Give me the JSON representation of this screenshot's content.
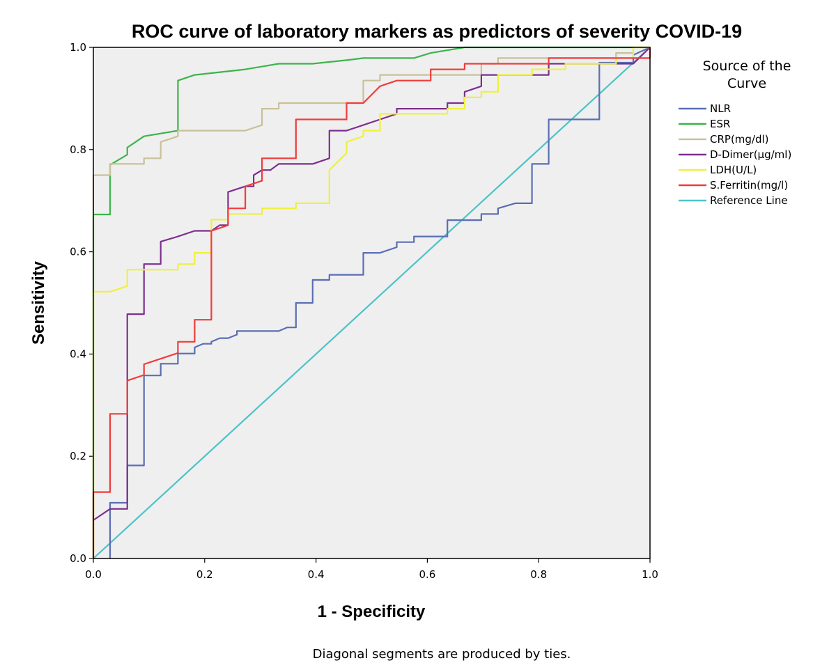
{
  "chart_data": {
    "type": "line",
    "title": "ROC curve of laboratory markers as predictors of severity COVID-19",
    "xlabel": "1 - Specificity",
    "ylabel": "Sensitivity",
    "footnote": "Diagonal segments are produced by ties.",
    "xlim": [
      0,
      1
    ],
    "ylim": [
      0,
      1
    ],
    "x_ticks": [
      "0.0",
      "0.2",
      "0.4",
      "0.6",
      "0.8",
      "1.0"
    ],
    "y_ticks": [
      "0.0",
      "0.2",
      "0.4",
      "0.6",
      "0.8",
      "1.0"
    ],
    "grid": false,
    "plot_background": "#efefef",
    "legend": {
      "title_lines": [
        "Source of the",
        "Curve"
      ],
      "position": "right"
    },
    "series": [
      {
        "name": "NLR",
        "color": "#5a6eb4",
        "points": [
          [
            0.03,
            0
          ],
          [
            0.03,
            0.097
          ],
          [
            0.03,
            0.109
          ],
          [
            0.061,
            0.109
          ],
          [
            0.061,
            0.182
          ],
          [
            0.091,
            0.182
          ],
          [
            0.091,
            0.358
          ],
          [
            0.121,
            0.358
          ],
          [
            0.121,
            0.381
          ],
          [
            0.152,
            0.381
          ],
          [
            0.152,
            0.401
          ],
          [
            0.182,
            0.401
          ],
          [
            0.182,
            0.413
          ],
          [
            0.197,
            0.42
          ],
          [
            0.212,
            0.42
          ],
          [
            0.212,
            0.424
          ],
          [
            0.227,
            0.431
          ],
          [
            0.242,
            0.431
          ],
          [
            0.258,
            0.438
          ],
          [
            0.258,
            0.445
          ],
          [
            0.333,
            0.445
          ],
          [
            0.348,
            0.452
          ],
          [
            0.364,
            0.452
          ],
          [
            0.364,
            0.5
          ],
          [
            0.394,
            0.5
          ],
          [
            0.394,
            0.545
          ],
          [
            0.424,
            0.545
          ],
          [
            0.424,
            0.555
          ],
          [
            0.485,
            0.555
          ],
          [
            0.485,
            0.598
          ],
          [
            0.515,
            0.598
          ],
          [
            0.545,
            0.609
          ],
          [
            0.545,
            0.619
          ],
          [
            0.576,
            0.619
          ],
          [
            0.576,
            0.63
          ],
          [
            0.636,
            0.63
          ],
          [
            0.636,
            0.662
          ],
          [
            0.697,
            0.662
          ],
          [
            0.697,
            0.674
          ],
          [
            0.727,
            0.674
          ],
          [
            0.727,
            0.685
          ],
          [
            0.758,
            0.695
          ],
          [
            0.788,
            0.695
          ],
          [
            0.788,
            0.772
          ],
          [
            0.818,
            0.772
          ],
          [
            0.818,
            0.859
          ],
          [
            0.909,
            0.859
          ],
          [
            0.909,
            0.97
          ],
          [
            0.97,
            0.97
          ],
          [
            0.97,
            0.985
          ],
          [
            1,
            1
          ]
        ]
      },
      {
        "name": "ESR",
        "color": "#3cb44b",
        "points": [
          [
            0,
            0
          ],
          [
            0,
            0.673
          ],
          [
            0.03,
            0.673
          ],
          [
            0.03,
            0.77
          ],
          [
            0.061,
            0.79
          ],
          [
            0.061,
            0.804
          ],
          [
            0.076,
            0.815
          ],
          [
            0.091,
            0.826
          ],
          [
            0.152,
            0.837
          ],
          [
            0.152,
            0.935
          ],
          [
            0.182,
            0.946
          ],
          [
            0.273,
            0.957
          ],
          [
            0.333,
            0.968
          ],
          [
            0.394,
            0.968
          ],
          [
            0.455,
            0.975
          ],
          [
            0.485,
            0.979
          ],
          [
            0.576,
            0.979
          ],
          [
            0.606,
            0.989
          ],
          [
            0.667,
            1
          ],
          [
            1,
            1
          ]
        ]
      },
      {
        "name": "CRP(mg/dl)",
        "color": "#c9c19a",
        "points": [
          [
            0,
            0
          ],
          [
            0,
            0.75
          ],
          [
            0.03,
            0.75
          ],
          [
            0.03,
            0.772
          ],
          [
            0.091,
            0.772
          ],
          [
            0.091,
            0.783
          ],
          [
            0.121,
            0.783
          ],
          [
            0.121,
            0.815
          ],
          [
            0.152,
            0.826
          ],
          [
            0.152,
            0.837
          ],
          [
            0.273,
            0.837
          ],
          [
            0.303,
            0.848
          ],
          [
            0.303,
            0.88
          ],
          [
            0.333,
            0.88
          ],
          [
            0.333,
            0.891
          ],
          [
            0.485,
            0.891
          ],
          [
            0.485,
            0.935
          ],
          [
            0.515,
            0.935
          ],
          [
            0.515,
            0.946
          ],
          [
            0.697,
            0.946
          ],
          [
            0.697,
            0.968
          ],
          [
            0.727,
            0.968
          ],
          [
            0.727,
            0.979
          ],
          [
            0.939,
            0.979
          ],
          [
            0.939,
            0.989
          ],
          [
            0.97,
            0.989
          ],
          [
            0.97,
            1
          ],
          [
            1,
            1
          ]
        ]
      },
      {
        "name": "D-Dimer(µg/ml)",
        "color": "#7d2f8e",
        "points": [
          [
            0,
            0.075
          ],
          [
            0.03,
            0.097
          ],
          [
            0.061,
            0.097
          ],
          [
            0.061,
            0.478
          ],
          [
            0.091,
            0.478
          ],
          [
            0.091,
            0.576
          ],
          [
            0.121,
            0.576
          ],
          [
            0.121,
            0.62
          ],
          [
            0.152,
            0.63
          ],
          [
            0.182,
            0.641
          ],
          [
            0.212,
            0.641
          ],
          [
            0.227,
            0.652
          ],
          [
            0.242,
            0.652
          ],
          [
            0.242,
            0.717
          ],
          [
            0.273,
            0.728
          ],
          [
            0.288,
            0.728
          ],
          [
            0.288,
            0.75
          ],
          [
            0.303,
            0.76
          ],
          [
            0.318,
            0.76
          ],
          [
            0.333,
            0.772
          ],
          [
            0.394,
            0.772
          ],
          [
            0.424,
            0.783
          ],
          [
            0.424,
            0.837
          ],
          [
            0.455,
            0.837
          ],
          [
            0.485,
            0.848
          ],
          [
            0.515,
            0.859
          ],
          [
            0.545,
            0.87
          ],
          [
            0.545,
            0.88
          ],
          [
            0.636,
            0.88
          ],
          [
            0.636,
            0.891
          ],
          [
            0.667,
            0.891
          ],
          [
            0.667,
            0.913
          ],
          [
            0.697,
            0.924
          ],
          [
            0.697,
            0.946
          ],
          [
            0.818,
            0.946
          ],
          [
            0.818,
            0.968
          ],
          [
            0.97,
            0.968
          ],
          [
            1,
            1
          ]
        ]
      },
      {
        "name": "LDH(U/L)",
        "color": "#f0f03c",
        "points": [
          [
            0,
            0
          ],
          [
            0,
            0.522
          ],
          [
            0.03,
            0.522
          ],
          [
            0.061,
            0.533
          ],
          [
            0.061,
            0.565
          ],
          [
            0.152,
            0.565
          ],
          [
            0.152,
            0.576
          ],
          [
            0.182,
            0.576
          ],
          [
            0.182,
            0.598
          ],
          [
            0.212,
            0.598
          ],
          [
            0.212,
            0.663
          ],
          [
            0.242,
            0.663
          ],
          [
            0.242,
            0.674
          ],
          [
            0.303,
            0.674
          ],
          [
            0.303,
            0.685
          ],
          [
            0.364,
            0.685
          ],
          [
            0.364,
            0.695
          ],
          [
            0.424,
            0.695
          ],
          [
            0.424,
            0.76
          ],
          [
            0.455,
            0.793
          ],
          [
            0.455,
            0.815
          ],
          [
            0.485,
            0.826
          ],
          [
            0.485,
            0.837
          ],
          [
            0.515,
            0.837
          ],
          [
            0.515,
            0.87
          ],
          [
            0.636,
            0.87
          ],
          [
            0.636,
            0.88
          ],
          [
            0.667,
            0.88
          ],
          [
            0.667,
            0.902
          ],
          [
            0.697,
            0.902
          ],
          [
            0.697,
            0.913
          ],
          [
            0.727,
            0.913
          ],
          [
            0.727,
            0.946
          ],
          [
            0.788,
            0.946
          ],
          [
            0.788,
            0.957
          ],
          [
            0.848,
            0.957
          ],
          [
            0.848,
            0.968
          ],
          [
            0.939,
            0.968
          ],
          [
            0.939,
            0.979
          ],
          [
            0.97,
            0.979
          ],
          [
            0.97,
            1
          ],
          [
            1,
            1
          ]
        ]
      },
      {
        "name": "S.Ferritin(mg/l)",
        "color": "#f03c3c",
        "points": [
          [
            0,
            0
          ],
          [
            0,
            0.13
          ],
          [
            0.03,
            0.13
          ],
          [
            0.03,
            0.283
          ],
          [
            0.061,
            0.283
          ],
          [
            0.061,
            0.348
          ],
          [
            0.091,
            0.359
          ],
          [
            0.091,
            0.38
          ],
          [
            0.152,
            0.402
          ],
          [
            0.152,
            0.424
          ],
          [
            0.182,
            0.424
          ],
          [
            0.182,
            0.467
          ],
          [
            0.212,
            0.467
          ],
          [
            0.212,
            0.641
          ],
          [
            0.242,
            0.652
          ],
          [
            0.242,
            0.685
          ],
          [
            0.273,
            0.685
          ],
          [
            0.273,
            0.728
          ],
          [
            0.303,
            0.739
          ],
          [
            0.303,
            0.783
          ],
          [
            0.364,
            0.783
          ],
          [
            0.364,
            0.859
          ],
          [
            0.455,
            0.859
          ],
          [
            0.455,
            0.891
          ],
          [
            0.485,
            0.891
          ],
          [
            0.515,
            0.924
          ],
          [
            0.545,
            0.935
          ],
          [
            0.606,
            0.935
          ],
          [
            0.606,
            0.957
          ],
          [
            0.667,
            0.957
          ],
          [
            0.667,
            0.968
          ],
          [
            0.818,
            0.968
          ],
          [
            0.818,
            0.979
          ],
          [
            1,
            0.979
          ],
          [
            1,
            1
          ]
        ]
      },
      {
        "name": "Reference Line",
        "color": "#4cc3c8",
        "points": [
          [
            0,
            0
          ],
          [
            1,
            1
          ]
        ]
      }
    ]
  }
}
